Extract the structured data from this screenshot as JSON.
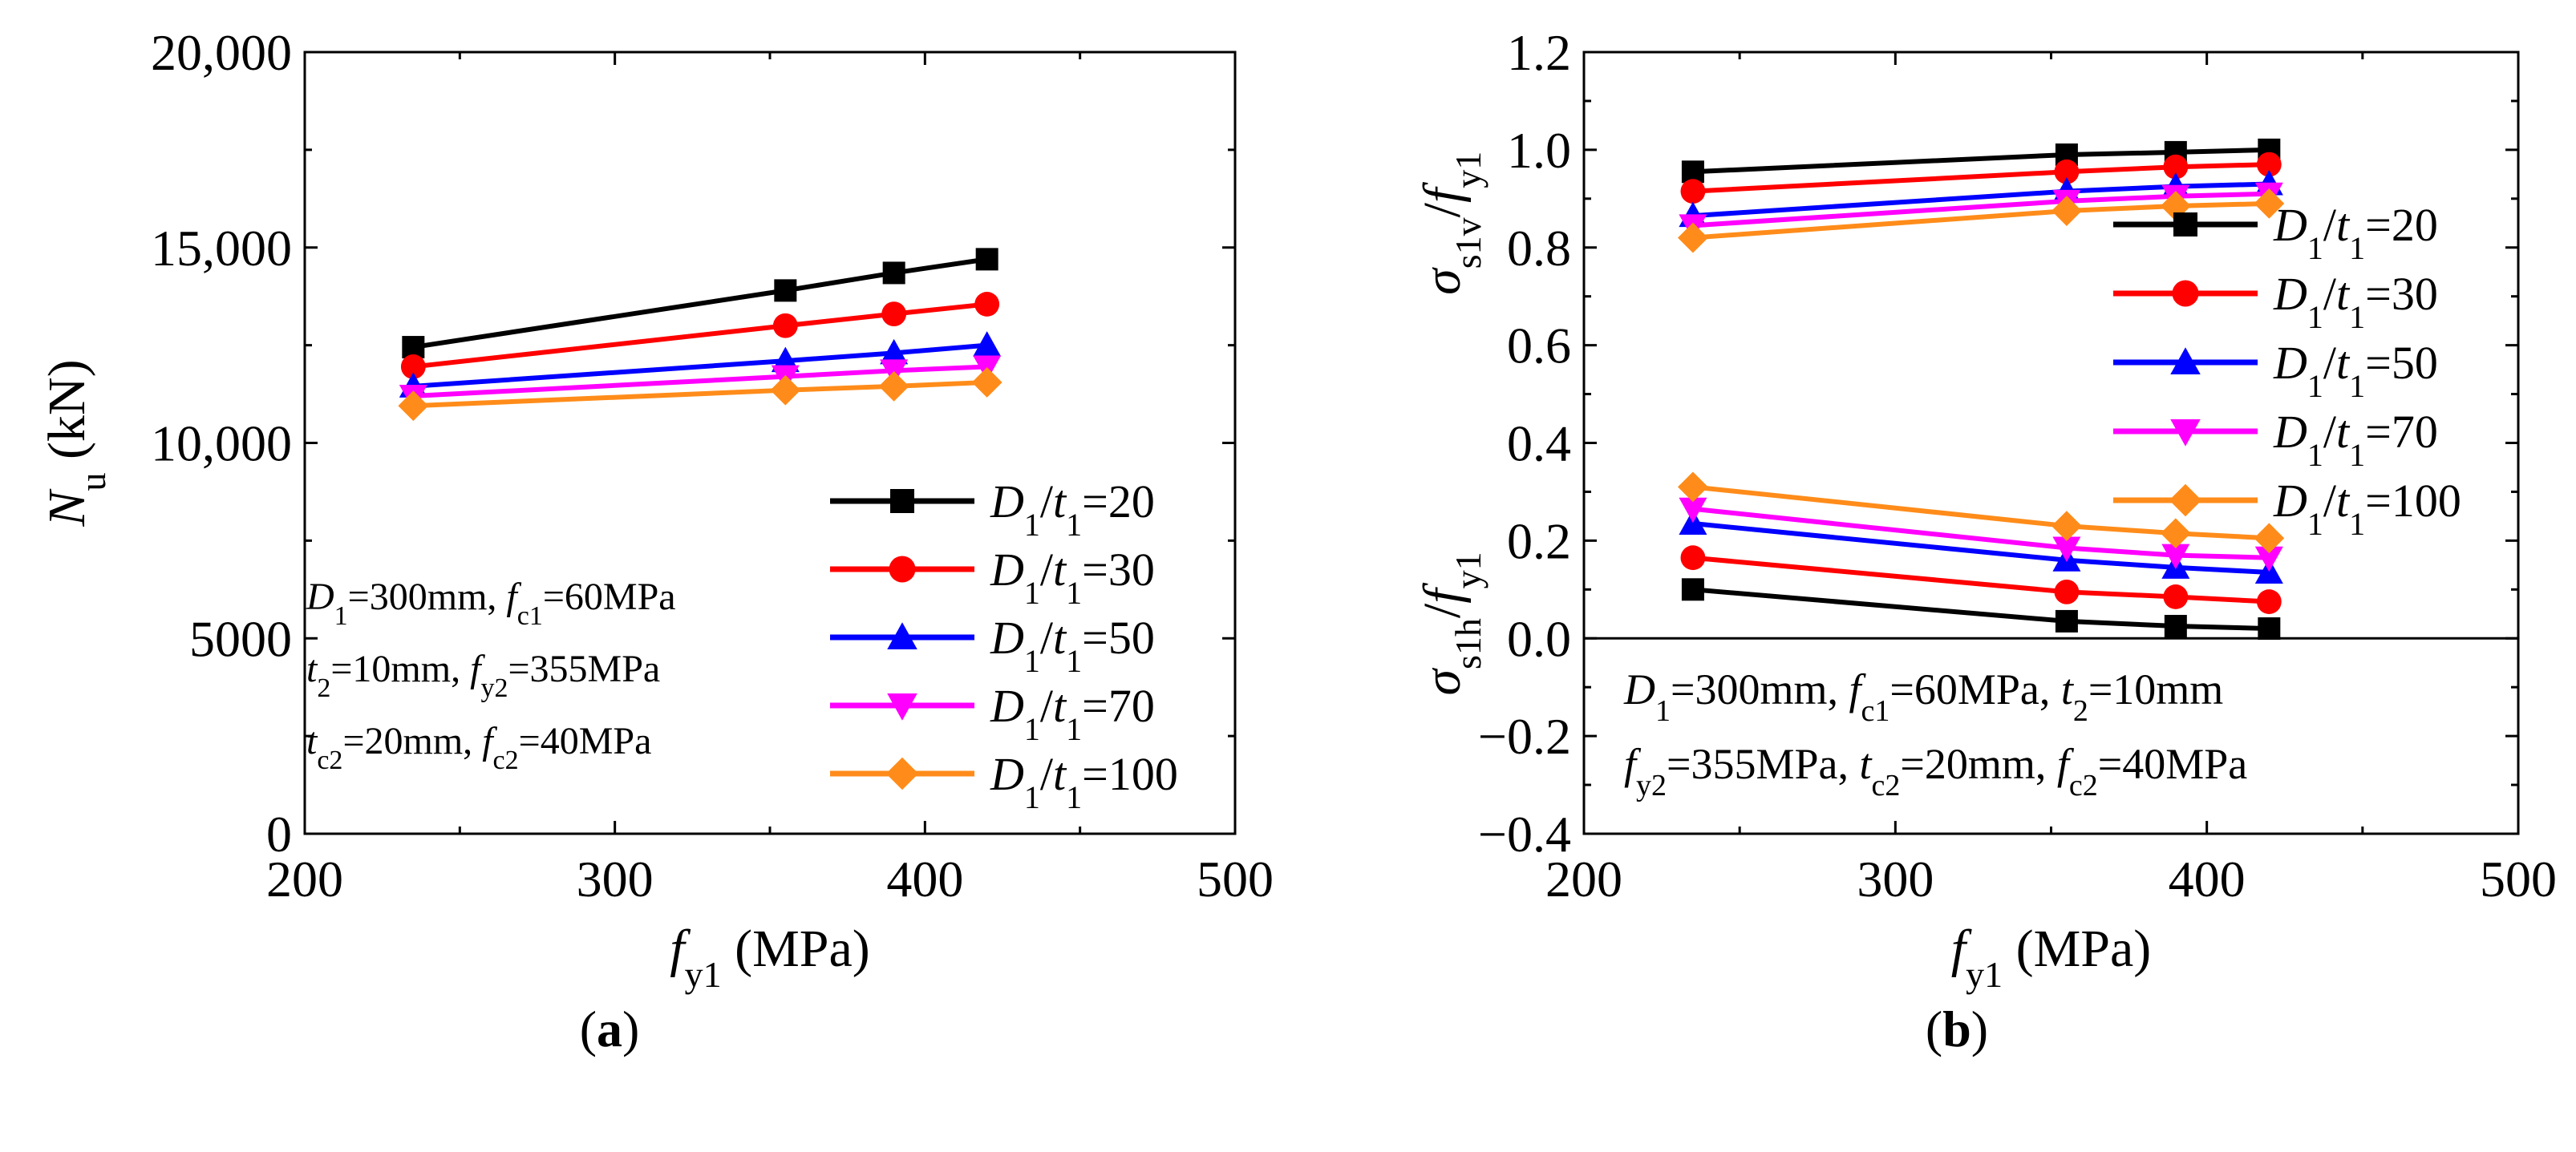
{
  "chart_data": [
    {
      "panel_label": "a",
      "type": "line",
      "x": [
        235,
        355,
        390,
        420
      ],
      "xlim": [
        200,
        500
      ],
      "xticks": [
        200,
        300,
        400,
        500
      ],
      "xtick_labels": [
        "200",
        "300",
        "400",
        "500"
      ],
      "ylim": [
        0,
        20000
      ],
      "yticks": [
        0,
        5000,
        10000,
        15000,
        20000
      ],
      "ytick_labels": [
        "0",
        "5000",
        "10,000",
        "15,000",
        "20,000"
      ],
      "xlabel": {
        "main": "f",
        "sub": "y1",
        "rest": " (MPa)"
      },
      "ylabel": {
        "main": "N",
        "sub": "u",
        "rest": " (kN)"
      },
      "legend_position": "lower-right",
      "series": [
        {
          "name": "D1/t1=20",
          "value_text": "=20",
          "color": "#000000",
          "marker": "square",
          "values": [
            12450,
            13900,
            14350,
            14700
          ]
        },
        {
          "name": "D1/t1=30",
          "value_text": "=30",
          "color": "#ff0000",
          "marker": "circle",
          "values": [
            11950,
            13000,
            13300,
            13550
          ]
        },
        {
          "name": "D1/t1=50",
          "value_text": "=50",
          "color": "#0000ff",
          "marker": "triangle-up",
          "values": [
            11450,
            12100,
            12300,
            12500
          ]
        },
        {
          "name": "D1/t1=70",
          "value_text": "=70",
          "color": "#ff00ff",
          "marker": "triangle-down",
          "values": [
            11200,
            11700,
            11850,
            11950
          ]
        },
        {
          "name": "D1/t1=100",
          "value_text": "=100",
          "color": "#ff8c1a",
          "marker": "diamond",
          "values": [
            10950,
            11350,
            11450,
            11550
          ]
        }
      ],
      "annotation_lines": [
        [
          {
            "v": "D",
            "s": "1",
            "i": true
          },
          {
            "v": "=300mm, "
          },
          {
            "v": "f",
            "s": "c1",
            "i": true
          },
          {
            "v": "=60MPa"
          }
        ],
        [
          {
            "v": "t",
            "s": "2",
            "i": true
          },
          {
            "v": "=10mm, "
          },
          {
            "v": "f",
            "s": "y2",
            "i": true
          },
          {
            "v": "=355MPa"
          }
        ],
        [
          {
            "v": "t",
            "s": "c2",
            "i": true
          },
          {
            "v": "=20mm, "
          },
          {
            "v": "f",
            "s": "c2",
            "i": true
          },
          {
            "v": "=40MPa"
          }
        ]
      ]
    },
    {
      "panel_label": "b",
      "type": "line",
      "x": [
        235,
        355,
        390,
        420
      ],
      "xlim": [
        200,
        500
      ],
      "xticks": [
        200,
        300,
        400,
        500
      ],
      "xtick_labels": [
        "200",
        "300",
        "400",
        "500"
      ],
      "ylim": [
        -0.4,
        1.2
      ],
      "yticks": [
        -0.4,
        -0.2,
        0.0,
        0.2,
        0.4,
        0.6,
        0.8,
        1.0,
        1.2
      ],
      "ytick_labels": [
        "−0.4",
        "−0.2",
        "0.0",
        "0.2",
        "0.4",
        "0.6",
        "0.8",
        "1.0",
        "1.2"
      ],
      "xlabel": {
        "main": "f",
        "sub": "y1",
        "rest": " (MPa)"
      },
      "ylabel_upper": {
        "main": "σ",
        "sub": "s1v",
        "rest": "/",
        "main2": "f",
        "sub2": "y1"
      },
      "ylabel_lower": {
        "main": "σ",
        "sub": "s1h",
        "rest": "/",
        "main2": "f",
        "sub2": "y1"
      },
      "reference_line_y": 0,
      "legend_position": "center-right",
      "series": [
        {
          "name": "D1/t1=20",
          "value_text": "=20",
          "color": "#000000",
          "marker": "square",
          "vertical": [
            0.955,
            0.99,
            0.995,
            1.0
          ],
          "hoop": [
            0.1,
            0.035,
            0.025,
            0.02
          ]
        },
        {
          "name": "D1/t1=30",
          "value_text": "=30",
          "color": "#ff0000",
          "marker": "circle",
          "vertical": [
            0.915,
            0.955,
            0.965,
            0.97
          ],
          "hoop": [
            0.165,
            0.095,
            0.085,
            0.075
          ]
        },
        {
          "name": "D1/t1=50",
          "value_text": "=50",
          "color": "#0000ff",
          "marker": "triangle-up",
          "vertical": [
            0.865,
            0.915,
            0.925,
            0.93
          ],
          "hoop": [
            0.235,
            0.16,
            0.145,
            0.135
          ]
        },
        {
          "name": "D1/t1=70",
          "value_text": "=70",
          "color": "#ff00ff",
          "marker": "triangle-down",
          "vertical": [
            0.845,
            0.895,
            0.905,
            0.91
          ],
          "hoop": [
            0.265,
            0.185,
            0.17,
            0.165
          ]
        },
        {
          "name": "D1/t1=100",
          "value_text": "=100",
          "color": "#ff8c1a",
          "marker": "diamond",
          "vertical": [
            0.82,
            0.875,
            0.885,
            0.89
          ],
          "hoop": [
            0.31,
            0.23,
            0.215,
            0.205
          ]
        }
      ],
      "annotation_lines": [
        [
          {
            "v": "D",
            "s": "1",
            "i": true
          },
          {
            "v": "=300mm, "
          },
          {
            "v": "f",
            "s": "c1",
            "i": true
          },
          {
            "v": "=60MPa, "
          },
          {
            "v": "t",
            "s": "2",
            "i": true
          },
          {
            "v": "=10mm"
          }
        ],
        [
          {
            "v": "f",
            "s": "y2",
            "i": true
          },
          {
            "v": "=355MPa, "
          },
          {
            "v": "t",
            "s": "c2",
            "i": true
          },
          {
            "v": "=20mm, "
          },
          {
            "v": "f",
            "s": "c2",
            "i": true
          },
          {
            "v": "=40MPa"
          }
        ]
      ]
    }
  ]
}
